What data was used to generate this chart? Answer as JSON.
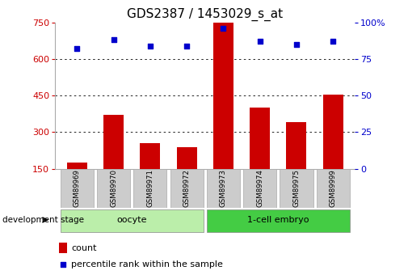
{
  "title": "GDS2387 / 1453029_s_at",
  "categories": [
    "GSM89969",
    "GSM89970",
    "GSM89971",
    "GSM89972",
    "GSM89973",
    "GSM89974",
    "GSM89975",
    "GSM89999"
  ],
  "count_values": [
    175,
    370,
    255,
    240,
    760,
    400,
    340,
    455
  ],
  "percentile_values": [
    82,
    88,
    84,
    84,
    96,
    87,
    85,
    87
  ],
  "bar_color": "#cc0000",
  "dot_color": "#0000cc",
  "ylim_left": [
    150,
    750
  ],
  "ylim_right": [
    0,
    100
  ],
  "yticks_left": [
    150,
    300,
    450,
    600,
    750
  ],
  "yticks_right": [
    0,
    25,
    50,
    75,
    100
  ],
  "grid_lines": [
    300,
    450,
    600
  ],
  "groups": [
    {
      "label": "oocyte",
      "indices": [
        0,
        1,
        2,
        3
      ],
      "color": "#bbeeaa"
    },
    {
      "label": "1-cell embryo",
      "indices": [
        4,
        5,
        6,
        7
      ],
      "color": "#44cc44"
    }
  ],
  "group_label": "development stage",
  "legend_count_label": "count",
  "legend_percentile_label": "percentile rank within the sample",
  "bar_color_red": "#cc0000",
  "dot_color_blue": "#0000cc",
  "title_fontsize": 11,
  "tick_bg_color": "#cccccc",
  "tick_border_color": "#aaaaaa"
}
